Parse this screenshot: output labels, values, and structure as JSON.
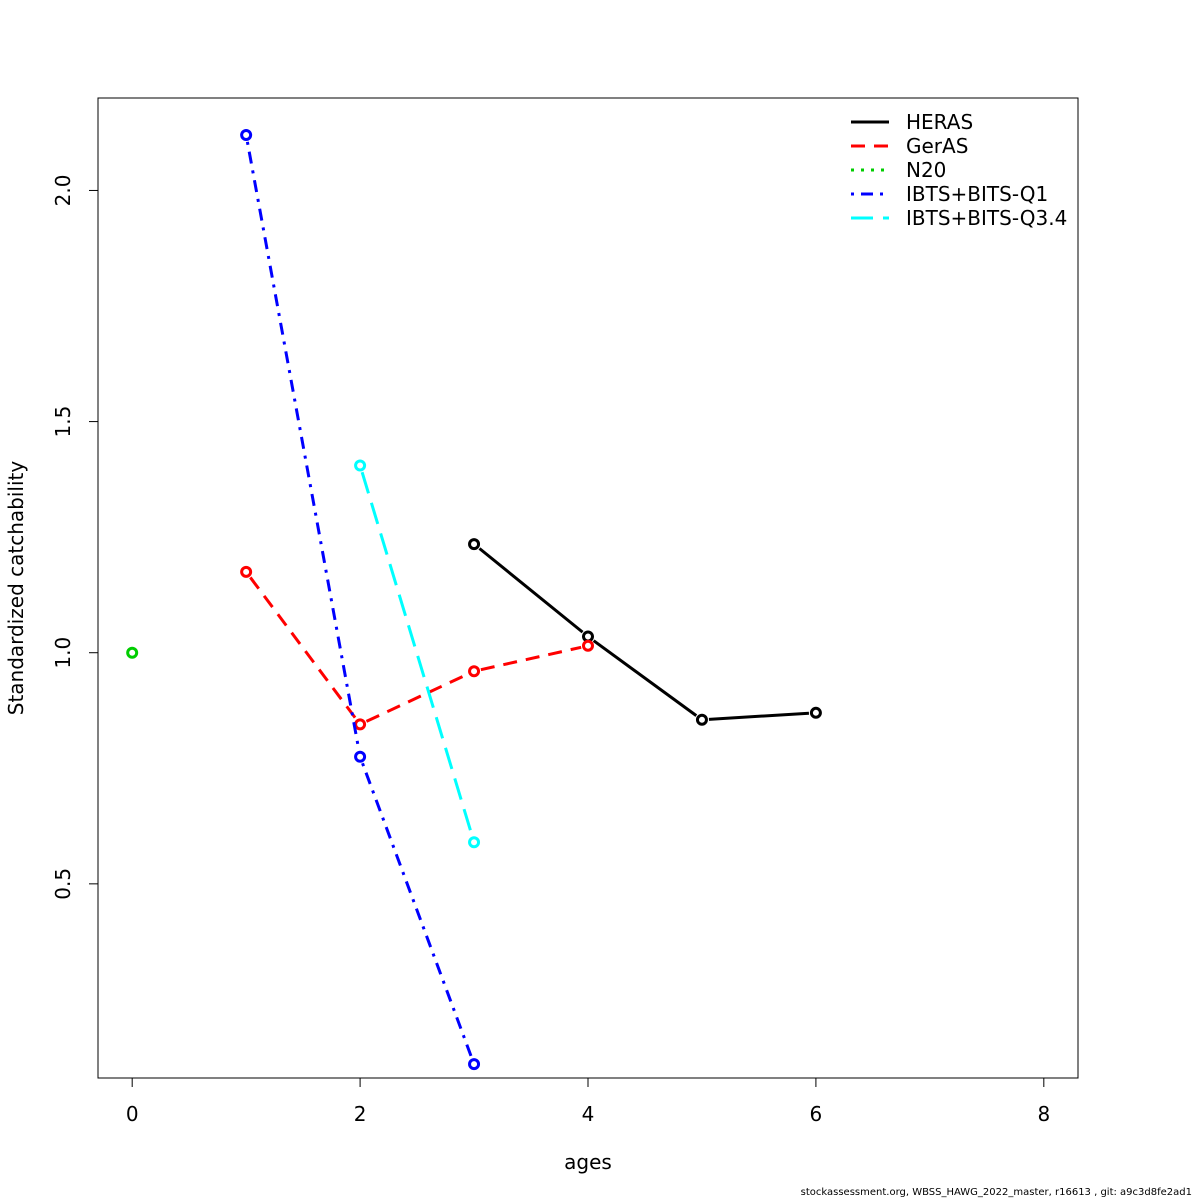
{
  "chart_data": {
    "type": "line",
    "title": "",
    "xlabel": "ages",
    "ylabel": "Standardized catchability",
    "xlim": [
      -0.3,
      8.3
    ],
    "ylim": [
      0.08,
      2.2
    ],
    "xticks": [
      0,
      2,
      4,
      6,
      8
    ],
    "yticks": [
      0.5,
      1.0,
      1.5,
      2.0
    ],
    "ytick_labels": [
      "0.5",
      "1.0",
      "1.5",
      "2.0"
    ],
    "grid": false,
    "legend_position": "top-right",
    "series": [
      {
        "name": "HERAS",
        "color": "#000000",
        "dash": "solid",
        "x": [
          3,
          4,
          5,
          6
        ],
        "y": [
          1.235,
          1.035,
          0.855,
          0.87
        ]
      },
      {
        "name": "GerAS",
        "color": "#ff0000",
        "dash": "dashed",
        "x": [
          1,
          2,
          3,
          4
        ],
        "y": [
          1.175,
          0.845,
          0.96,
          1.015
        ]
      },
      {
        "name": "N20",
        "color": "#00cd00",
        "dash": "dotted",
        "x": [
          0
        ],
        "y": [
          1.0
        ]
      },
      {
        "name": "IBTS+BITS-Q1",
        "color": "#0000ff",
        "dash": "dotdash",
        "x": [
          1,
          2,
          3
        ],
        "y": [
          2.12,
          0.775,
          0.11
        ]
      },
      {
        "name": "IBTS+BITS-Q3.4",
        "color": "#00ffff",
        "dash": "longdash",
        "x": [
          2,
          3
        ],
        "y": [
          1.405,
          0.59
        ]
      }
    ]
  },
  "footer": "stockassessment.org, WBSS_HAWG_2022_master, r16613 , git: a9c3d8fe2ad1"
}
